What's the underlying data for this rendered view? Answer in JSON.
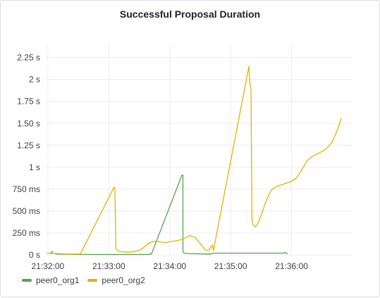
{
  "panel": {
    "title": "Successful Proposal Duration"
  },
  "colors": {
    "peer0_org1": "#56a64b",
    "peer0_org2": "#e0b400",
    "grid": "#ececec"
  },
  "chart_data": {
    "type": "line",
    "title": "Successful Proposal Duration",
    "xlabel": "",
    "ylabel": "",
    "x_unit": "time (HH:MM:SS)",
    "y_unit": "seconds",
    "ylim": [
      0,
      2.4
    ],
    "xlim": [
      "21:31:58",
      "21:37:00"
    ],
    "grid": true,
    "legend_position": "bottom-left",
    "y_ticks": [
      {
        "value": 0,
        "label": "0 s"
      },
      {
        "value": 0.25,
        "label": "250 ms"
      },
      {
        "value": 0.5,
        "label": "500 ms"
      },
      {
        "value": 0.75,
        "label": "750 ms"
      },
      {
        "value": 1,
        "label": "1 s"
      },
      {
        "value": 1.25,
        "label": "1.25 s"
      },
      {
        "value": 1.5,
        "label": "1.50 s"
      },
      {
        "value": 1.75,
        "label": "1.75 s"
      },
      {
        "value": 2,
        "label": "2 s"
      },
      {
        "value": 2.25,
        "label": "2.25 s"
      }
    ],
    "x_ticks": [
      "21:32:00",
      "21:33:00",
      "21:34:00",
      "21:35:00",
      "21:36:00"
    ],
    "series": [
      {
        "name": "peer0_org1",
        "color": "#56a64b",
        "points": [
          [
            "21:32:03",
            0.01
          ],
          [
            "21:32:04",
            0.04
          ],
          [
            "21:32:05",
            0.02
          ],
          [
            "21:32:10",
            0.01
          ],
          [
            "21:32:30",
            0.005
          ],
          [
            "21:33:00",
            0.005
          ],
          [
            "21:33:30",
            0.005
          ],
          [
            "21:33:40",
            0.005
          ],
          [
            "21:33:41",
            0.015
          ],
          [
            "21:33:42",
            0.01
          ],
          [
            "21:34:12",
            0.91
          ],
          [
            "21:34:13",
            0.91
          ],
          [
            "21:34:13",
            0.04
          ],
          [
            "21:34:14",
            0.02
          ],
          [
            "21:34:20",
            0.015
          ],
          [
            "21:34:40",
            0.01
          ],
          [
            "21:34:43",
            0.02
          ],
          [
            "21:35:00",
            0.02
          ],
          [
            "21:35:30",
            0.02
          ],
          [
            "21:35:52",
            0.02
          ],
          [
            "21:35:54",
            0.03
          ],
          [
            "21:35:55",
            0.015
          ],
          [
            "21:35:56",
            0.02
          ]
        ]
      },
      {
        "name": "peer0_org2",
        "color": "#e0b400",
        "points": [
          [
            "21:31:59",
            0.02
          ],
          [
            "21:32:05",
            0.02
          ],
          [
            "21:32:10",
            0.015
          ],
          [
            "21:32:20",
            0.01
          ],
          [
            "21:32:32",
            0.01
          ],
          [
            "21:33:05",
            0.77
          ],
          [
            "21:33:06",
            0.77
          ],
          [
            "21:33:07",
            0.07
          ],
          [
            "21:33:10",
            0.04
          ],
          [
            "21:33:20",
            0.03
          ],
          [
            "21:33:30",
            0.05
          ],
          [
            "21:33:35",
            0.09
          ],
          [
            "21:33:40",
            0.14
          ],
          [
            "21:33:45",
            0.155
          ],
          [
            "21:33:50",
            0.15
          ],
          [
            "21:33:55",
            0.14
          ],
          [
            "21:34:00",
            0.15
          ],
          [
            "21:34:05",
            0.16
          ],
          [
            "21:34:10",
            0.17
          ],
          [
            "21:34:15",
            0.19
          ],
          [
            "21:34:20",
            0.22
          ],
          [
            "21:34:25",
            0.2
          ],
          [
            "21:34:30",
            0.13
          ],
          [
            "21:34:35",
            0.06
          ],
          [
            "21:34:38",
            0.05
          ],
          [
            "21:34:40",
            0.08
          ],
          [
            "21:34:42",
            0.11
          ],
          [
            "21:34:43",
            0.05
          ],
          [
            "21:35:18",
            2.15
          ],
          [
            "21:35:19",
            1.95
          ],
          [
            "21:35:20",
            1.9
          ],
          [
            "21:35:21",
            0.4
          ],
          [
            "21:35:22",
            0.35
          ],
          [
            "21:35:24",
            0.32
          ],
          [
            "21:35:26",
            0.34
          ],
          [
            "21:35:30",
            0.45
          ],
          [
            "21:35:35",
            0.62
          ],
          [
            "21:35:40",
            0.74
          ],
          [
            "21:35:45",
            0.78
          ],
          [
            "21:35:50",
            0.8
          ],
          [
            "21:35:55",
            0.82
          ],
          [
            "21:36:00",
            0.84
          ],
          [
            "21:36:05",
            0.88
          ],
          [
            "21:36:10",
            0.97
          ],
          [
            "21:36:15",
            1.07
          ],
          [
            "21:36:20",
            1.12
          ],
          [
            "21:36:25",
            1.15
          ],
          [
            "21:36:30",
            1.18
          ],
          [
            "21:36:35",
            1.22
          ],
          [
            "21:36:40",
            1.29
          ],
          [
            "21:36:45",
            1.42
          ],
          [
            "21:36:49",
            1.56
          ]
        ]
      }
    ]
  }
}
